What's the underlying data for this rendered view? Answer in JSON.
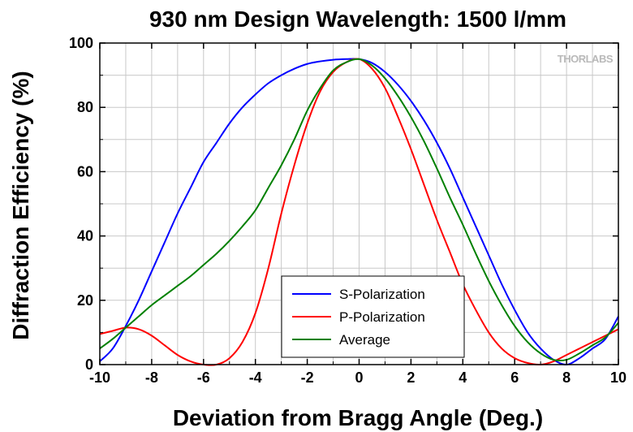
{
  "chart_data": {
    "type": "line",
    "title": "930 nm Design Wavelength: 1500 l/mm",
    "xlabel": "Deviation from Bragg Angle (Deg.)",
    "ylabel": "Diffraction Efficiency (%)",
    "xlim": [
      -10,
      10
    ],
    "ylim": [
      0,
      100
    ],
    "xticks": [
      -10,
      -8,
      -6,
      -4,
      -2,
      0,
      2,
      4,
      6,
      8,
      10
    ],
    "yticks": [
      0,
      20,
      40,
      60,
      80,
      100
    ],
    "grid": true,
    "legend_position": "bottom-center",
    "watermark": "THORLABS",
    "series": [
      {
        "name": "S-Polarization",
        "color": "#0000ff",
        "x": [
          -10,
          -9.5,
          -9,
          -8.5,
          -8,
          -7.5,
          -7,
          -6.5,
          -6,
          -5.5,
          -5,
          -4.5,
          -4,
          -3.5,
          -3,
          -2.5,
          -2,
          -1.5,
          -1,
          -0.5,
          0,
          0.5,
          1,
          1.5,
          2,
          2.5,
          3,
          3.5,
          4,
          4.5,
          5,
          5.5,
          6,
          6.5,
          7,
          7.5,
          8,
          8.5,
          9,
          9.5,
          10
        ],
        "y": [
          1,
          5,
          12,
          20,
          29,
          38,
          47,
          55,
          63,
          69,
          75,
          80,
          84,
          87.5,
          90,
          92,
          93.5,
          94.3,
          94.8,
          95,
          95,
          93.8,
          91,
          87,
          82,
          76,
          69,
          61,
          52,
          43,
          34,
          25,
          17,
          10,
          5,
          1.5,
          0,
          2,
          5,
          8,
          15
        ]
      },
      {
        "name": "P-Polarization",
        "color": "#ff0000",
        "x": [
          -10,
          -9.5,
          -9,
          -8.5,
          -8,
          -7.5,
          -7,
          -6.5,
          -6,
          -5.5,
          -5,
          -4.5,
          -4,
          -3.5,
          -3,
          -2.5,
          -2,
          -1.5,
          -1,
          -0.5,
          0,
          0.5,
          1,
          1.5,
          2,
          2.5,
          3,
          3.5,
          4,
          4.5,
          5,
          5.5,
          6,
          6.5,
          7,
          7.5,
          8,
          8.5,
          9,
          9.5,
          10
        ],
        "y": [
          9.5,
          10.5,
          11.5,
          11,
          9,
          6,
          3,
          1,
          0,
          0,
          2,
          7,
          16,
          30,
          47,
          62,
          75,
          85,
          91,
          94,
          95,
          92,
          86,
          77,
          67,
          56,
          45,
          35,
          25,
          17,
          10,
          5,
          2,
          0.5,
          0,
          1,
          3,
          5,
          7,
          9,
          11
        ]
      },
      {
        "name": "Average",
        "color": "#008000",
        "x": [
          -10,
          -9.5,
          -9,
          -8.5,
          -8,
          -7.5,
          -7,
          -6.5,
          -6,
          -5.5,
          -5,
          -4.5,
          -4,
          -3.5,
          -3,
          -2.5,
          -2,
          -1.5,
          -1,
          -0.5,
          0,
          0.5,
          1,
          1.5,
          2,
          2.5,
          3,
          3.5,
          4,
          4.5,
          5,
          5.5,
          6,
          6.5,
          7,
          7.5,
          8,
          8.5,
          9,
          9.5,
          10
        ],
        "y": [
          5,
          8,
          11.5,
          15,
          18.5,
          21.5,
          24.5,
          27.5,
          31,
          34.5,
          38.5,
          43,
          48,
          55,
          62,
          70,
          79,
          86,
          91.5,
          94,
          95,
          93,
          89,
          83.5,
          77,
          69.5,
          61,
          52,
          43.5,
          34.5,
          26,
          18.5,
          12,
          7,
          3.5,
          1.5,
          1.5,
          3.5,
          6,
          8.5,
          13
        ]
      }
    ]
  }
}
